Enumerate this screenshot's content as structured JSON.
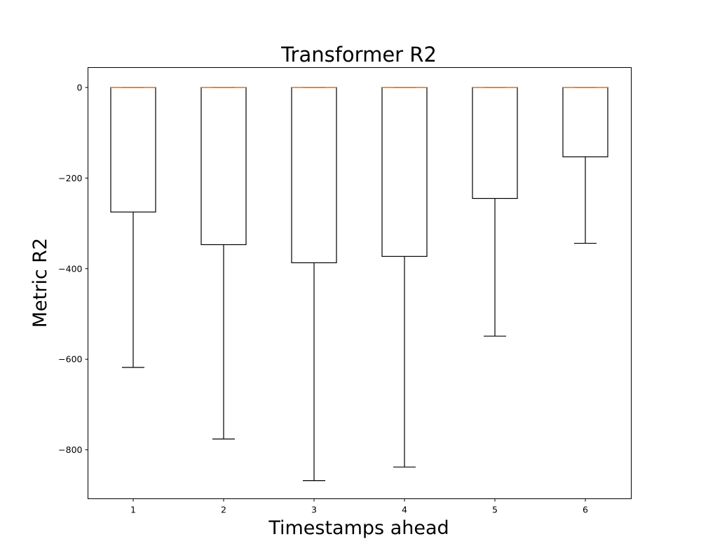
{
  "chart_data": {
    "type": "box",
    "title": "Transformer R2",
    "xlabel": "Timestamps ahead",
    "ylabel": "Metric R2",
    "categories": [
      "1",
      "2",
      "3",
      "4",
      "5",
      "6"
    ],
    "ylim": [
      -908,
      44
    ],
    "yticks": [
      0,
      -200,
      -400,
      -600,
      -800
    ],
    "ytick_labels": [
      "0",
      "−200",
      "−400",
      "−600",
      "−800"
    ],
    "boxes": [
      {
        "category": "1",
        "whisker_low": -618,
        "q1": -275,
        "median": 0,
        "q3": 0,
        "whisker_high": 0
      },
      {
        "category": "2",
        "whisker_low": -776,
        "q1": -347,
        "median": 0,
        "q3": 0,
        "whisker_high": 0
      },
      {
        "category": "3",
        "whisker_low": -868,
        "q1": -387,
        "median": 0,
        "q3": 0,
        "whisker_high": 0
      },
      {
        "category": "4",
        "whisker_low": -838,
        "q1": -373,
        "median": 0,
        "q3": 0,
        "whisker_high": 0
      },
      {
        "category": "5",
        "whisker_low": -549,
        "q1": -245,
        "median": 0,
        "q3": 0,
        "whisker_high": 0
      },
      {
        "category": "6",
        "whisker_low": -344,
        "q1": -153,
        "median": 0,
        "q3": 0,
        "whisker_high": 0
      }
    ],
    "colors": {
      "box": "#000000",
      "whisker": "#000000",
      "median": "#ff7f0e"
    },
    "grid": false,
    "legend": "none"
  }
}
